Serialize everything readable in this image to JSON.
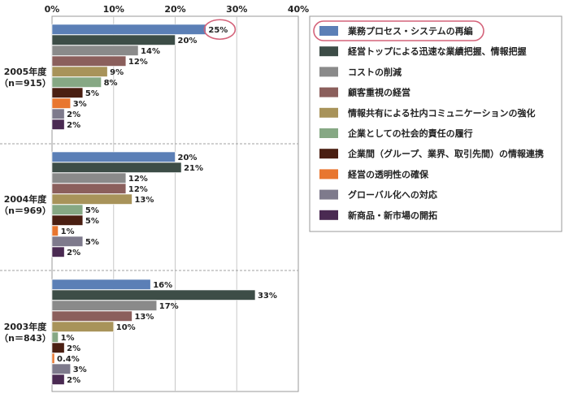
{
  "chart_data": {
    "type": "bar",
    "orientation": "horizontal",
    "xlim": [
      0,
      40
    ],
    "x_ticks": [
      "0%",
      "10%",
      "20%",
      "30%",
      "40%"
    ],
    "grid": true,
    "legend_position": "right",
    "series_names": [
      "業務プロセス・システムの再編",
      "経営トップによる迅速な業績把握、情報把握",
      "コストの削減",
      "顧客重視の経営",
      "情報共有による社内コミュニケーションの強化",
      "企業としての社会的責任の履行",
      "企業間（グループ、業界、取引先間）の情報連携",
      "経営の透明性の確保",
      "グローバル化への対応",
      "新商品・新市場の開拓"
    ],
    "colors": [
      "#5b7fb6",
      "#3d4d47",
      "#8a8a8a",
      "#8b5f5c",
      "#a8935a",
      "#86a884",
      "#4a1f12",
      "#e8762f",
      "#7e7a8c",
      "#4a2a52"
    ],
    "highlight": {
      "group": 0,
      "series": 0,
      "legend_index": 0,
      "color": "#d4637a"
    },
    "groups": [
      {
        "label_line1": "2005年度",
        "label_line2": "（n＝915）",
        "values": [
          25,
          20,
          14,
          12,
          9,
          8,
          5,
          3,
          2,
          2
        ],
        "labels": [
          "25%",
          "20%",
          "14%",
          "12%",
          "9%",
          "8%",
          "5%",
          "3%",
          "2%",
          "2%"
        ]
      },
      {
        "label_line1": "2004年度",
        "label_line2": "（n＝969）",
        "values": [
          20,
          21,
          12,
          12,
          13,
          5,
          5,
          1,
          5,
          2
        ],
        "labels": [
          "20%",
          "21%",
          "12%",
          "12%",
          "13%",
          "5%",
          "5%",
          "1%",
          "5%",
          "2%"
        ]
      },
      {
        "label_line1": "2003年度",
        "label_line2": "（n＝843）",
        "values": [
          16,
          33,
          17,
          13,
          10,
          1,
          2,
          0.4,
          3,
          2
        ],
        "labels": [
          "16%",
          "33%",
          "17%",
          "13%",
          "10%",
          "1%",
          "2%",
          "0.4%",
          "3%",
          "2%"
        ]
      }
    ]
  }
}
